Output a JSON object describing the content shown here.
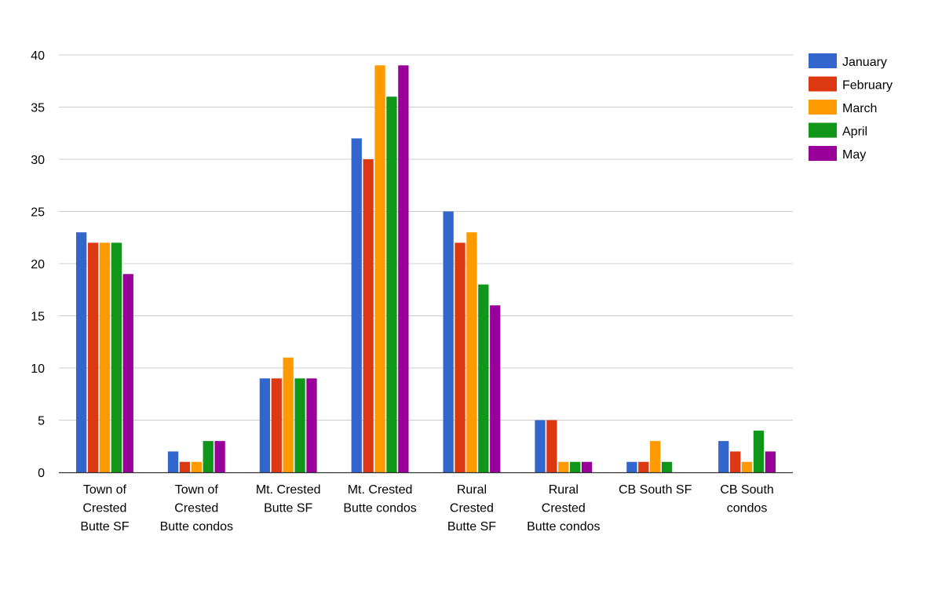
{
  "chart_data": {
    "type": "bar",
    "title": "",
    "xlabel": "",
    "ylabel": "",
    "ylim": [
      0,
      40
    ],
    "yticks": [
      0,
      5,
      10,
      15,
      20,
      25,
      30,
      35,
      40
    ],
    "grid": true,
    "legend_position": "right",
    "categories": [
      [
        "Town of",
        "Crested",
        "Butte SF"
      ],
      [
        "Town of",
        "Crested",
        "Butte condos"
      ],
      [
        "Mt. Crested",
        "Butte SF"
      ],
      [
        "Mt. Crested",
        "Butte condos"
      ],
      [
        "Rural",
        "Crested",
        "Butte SF"
      ],
      [
        "Rural",
        "Crested",
        "Butte condos"
      ],
      [
        "CB South SF"
      ],
      [
        "CB South",
        "condos"
      ]
    ],
    "series": [
      {
        "name": "January",
        "color": "#3366cc",
        "values": [
          23,
          2,
          9,
          32,
          25,
          5,
          1,
          3
        ]
      },
      {
        "name": "February",
        "color": "#dc3912",
        "values": [
          22,
          1,
          9,
          30,
          22,
          5,
          1,
          2
        ]
      },
      {
        "name": "March",
        "color": "#ff9900",
        "values": [
          22,
          1,
          11,
          39,
          23,
          1,
          3,
          1
        ]
      },
      {
        "name": "April",
        "color": "#109618",
        "values": [
          22,
          3,
          9,
          36,
          18,
          1,
          1,
          4
        ]
      },
      {
        "name": "May",
        "color": "#990099",
        "values": [
          19,
          3,
          9,
          39,
          16,
          1,
          0,
          2
        ]
      }
    ]
  }
}
